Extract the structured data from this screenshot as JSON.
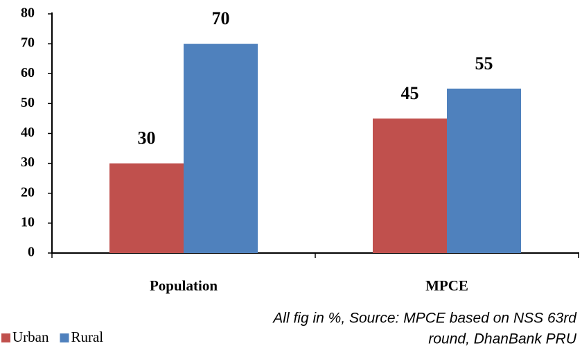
{
  "chart_data": {
    "type": "bar",
    "categories": [
      "Population",
      "MPCE"
    ],
    "series": [
      {
        "name": "Urban",
        "color": "#c0504d",
        "values": [
          30,
          45
        ]
      },
      {
        "name": "Rural",
        "color": "#4f81bd",
        "values": [
          70,
          55
        ]
      }
    ],
    "ylim": [
      0,
      80
    ],
    "yticks": [
      0,
      10,
      20,
      30,
      40,
      50,
      60,
      70,
      80
    ],
    "grid": false,
    "legend": "bottom-left",
    "annotation": [
      "All fig in %, Source: MPCE based on NSS 63rd",
      "round, DhanBank PRU"
    ]
  }
}
